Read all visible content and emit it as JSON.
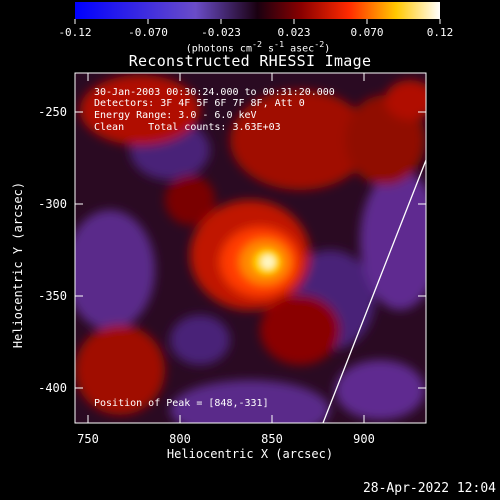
{
  "colorbar": {
    "ticks": [
      "-0.12",
      "-0.070",
      "-0.023",
      "0.023",
      "0.070",
      "0.12"
    ],
    "unit_main": "(photons cm",
    "unit_sup1": "-2",
    "unit_mid": " s",
    "unit_sup2": "-1",
    "unit_mid2": " asec",
    "unit_sup3": "-2",
    "unit_end": ")"
  },
  "title": "Reconstructed RHESSI Image",
  "info": {
    "line1": "30-Jan-2003 00:30:24.000 to 00:31:20.000",
    "line2": "Detectors: 3F 4F 5F 6F 7F 8F, Att 0",
    "line3": "Energy Range: 3.0 - 6.0 keV",
    "line4": "Clean    Total counts: 3.63E+03"
  },
  "peak": "Position of Peak = [848,-331]",
  "axes": {
    "xlabel": "Heliocentric X (arcsec)",
    "ylabel": "Heliocentric Y (arcsec)",
    "xticks": [
      "750",
      "800",
      "850",
      "900"
    ],
    "yticks": [
      "-250",
      "-300",
      "-350",
      "-400"
    ]
  },
  "timestamp": "28-Apr-2022 12:04"
}
